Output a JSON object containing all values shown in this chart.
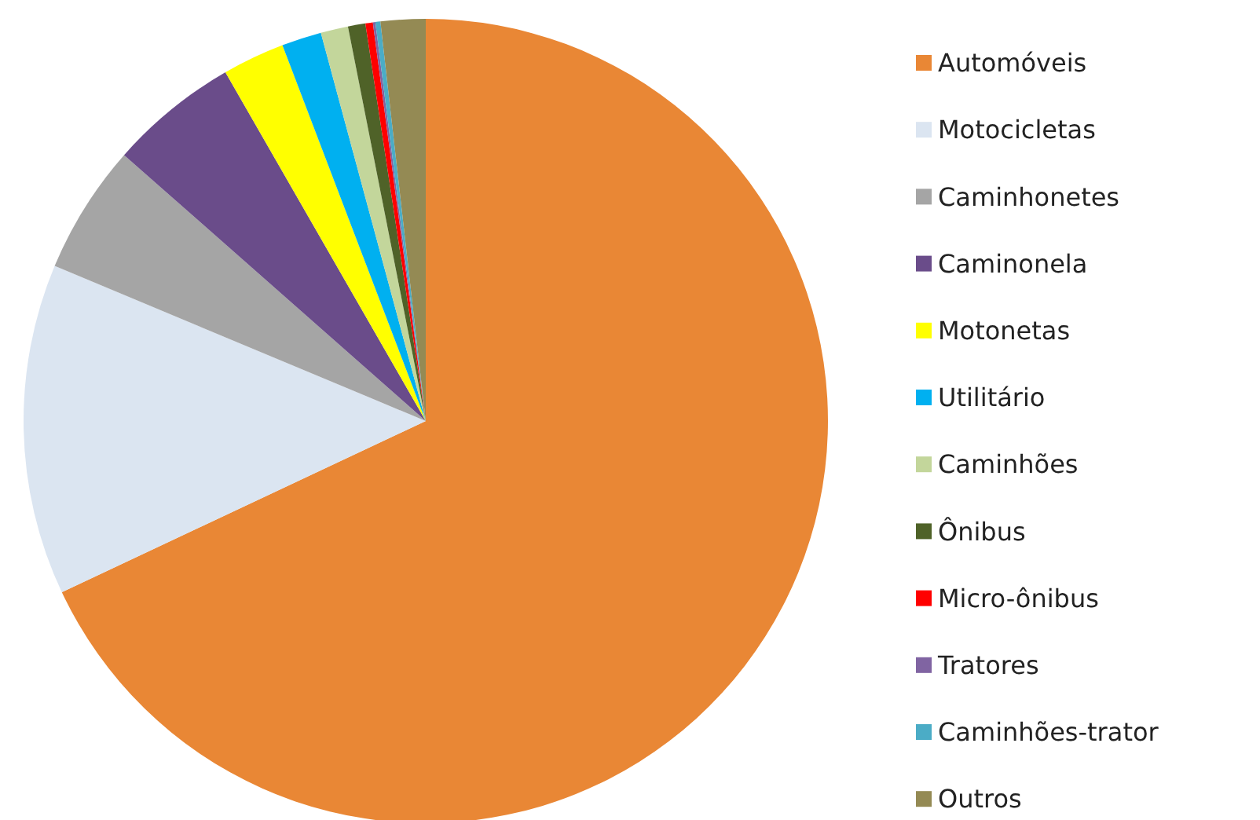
{
  "chart_data": {
    "type": "pie",
    "categories": [
      "Automóveis",
      "Motocicletas",
      "Caminhonetes",
      "Caminonela",
      "Motonetas",
      "Utilitário",
      "Caminhões",
      "Ônibus",
      "Micro-ônibus",
      "Tratores",
      "Caminhões-trator",
      "Outros"
    ],
    "values": [
      68.0,
      13.3,
      5.2,
      5.2,
      2.5,
      1.6,
      1.1,
      0.7,
      0.3,
      0.1,
      0.2,
      1.8
    ],
    "colors": [
      "#e98735",
      "#dbe5f1",
      "#a5a5a5",
      "#6a4c8a",
      "#ffff00",
      "#00b0f0",
      "#c3d69b",
      "#4f6228",
      "#ff0000",
      "#8064a2",
      "#4bacc6",
      "#948a54"
    ],
    "legend": "right"
  }
}
